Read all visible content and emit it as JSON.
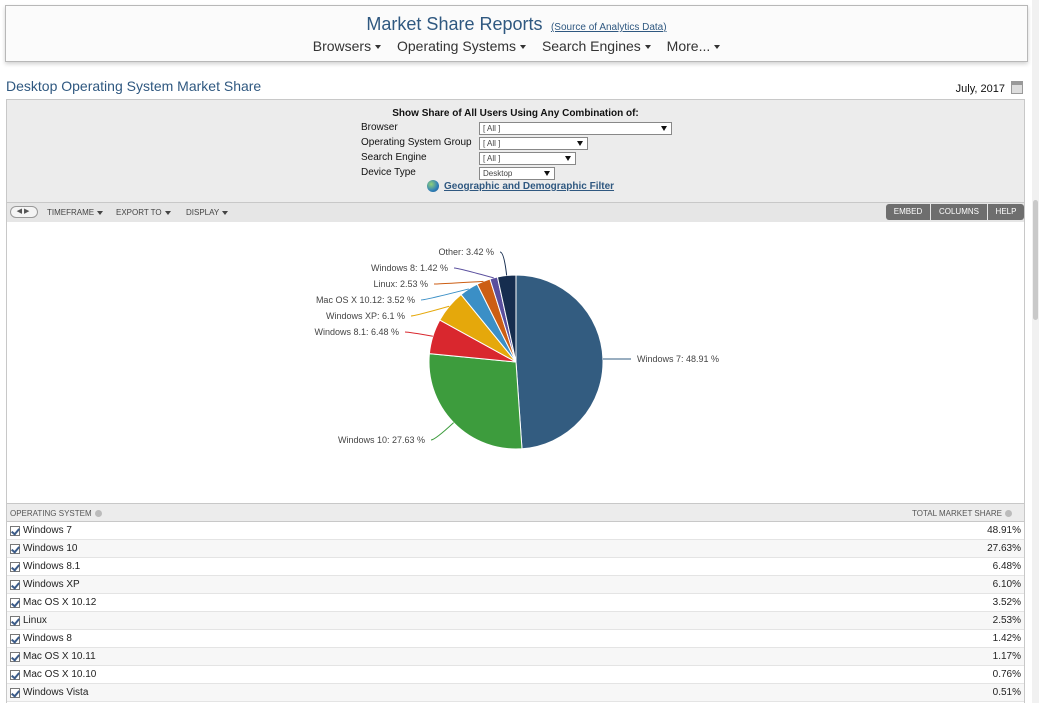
{
  "header": {
    "title": "Market Share Reports",
    "source_link": "(Source of Analytics Data)",
    "nav": [
      {
        "label": "Browsers"
      },
      {
        "label": "Operating Systems"
      },
      {
        "label": "Search Engines"
      },
      {
        "label": "More..."
      }
    ]
  },
  "page": {
    "title": "Desktop Operating System Market Share",
    "date": "July, 2017"
  },
  "filters": {
    "heading": "Show Share of All Users Using Any Combination of:",
    "rows": [
      {
        "label": "Browser",
        "value": "[ All ]"
      },
      {
        "label": "Operating System Group",
        "value": "[ All ]"
      },
      {
        "label": "Search Engine",
        "value": "[ All ]"
      },
      {
        "label": "Device Type",
        "value": "Desktop"
      }
    ],
    "geo_link": "Geographic and Demographic Filter"
  },
  "toolbar": {
    "timeframe": "TIMEFRAME",
    "export": "EXPORT TO",
    "display": "DISPLAY",
    "embed": "EMBED",
    "columns": "COLUMNS",
    "help": "HELP"
  },
  "chart_data": {
    "type": "pie",
    "slices": [
      {
        "label": "Windows 7: 48.91 %",
        "value": 48.91,
        "color": "#335c80"
      },
      {
        "label": "Windows 10: 27.63 %",
        "value": 27.63,
        "color": "#3d9c3d"
      },
      {
        "label": "Windows 8.1: 6.48 %",
        "value": 6.48,
        "color": "#d9272e"
      },
      {
        "label": "Windows XP: 6.1 %",
        "value": 6.1,
        "color": "#e5a80b"
      },
      {
        "label": "Mac OS X 10.12: 3.52 %",
        "value": 3.52,
        "color": "#3b8fc6"
      },
      {
        "label": "Linux: 2.53 %",
        "value": 2.53,
        "color": "#cc5e14"
      },
      {
        "label": "Windows 8: 1.42 %",
        "value": 1.42,
        "color": "#5a4f9e"
      },
      {
        "label": "Other: 3.42 %",
        "value": 3.42,
        "color": "#162d4f"
      }
    ]
  },
  "table": {
    "col_left": "OPERATING SYSTEM",
    "col_right": "TOTAL MARKET SHARE",
    "rows": [
      {
        "name": "Windows 7",
        "value": "48.91%"
      },
      {
        "name": "Windows 10",
        "value": "27.63%"
      },
      {
        "name": "Windows 8.1",
        "value": "6.48%"
      },
      {
        "name": "Windows XP",
        "value": "6.10%"
      },
      {
        "name": "Mac OS X 10.12",
        "value": "3.52%"
      },
      {
        "name": "Linux",
        "value": "2.53%"
      },
      {
        "name": "Windows 8",
        "value": "1.42%"
      },
      {
        "name": "Mac OS X 10.11",
        "value": "1.17%"
      },
      {
        "name": "Mac OS X 10.10",
        "value": "0.76%"
      },
      {
        "name": "Windows Vista",
        "value": "0.51%"
      }
    ]
  }
}
